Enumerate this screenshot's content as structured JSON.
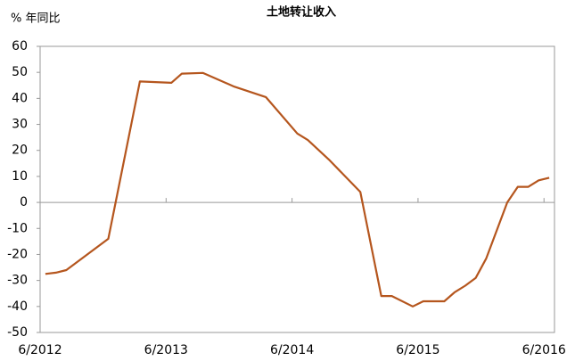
{
  "chart_data": {
    "type": "line",
    "title": "土地转让收入",
    "y_label": "% 年同比",
    "x": [
      "6/2012",
      "7/2012",
      "8/2012",
      "12/2012",
      "3/2013",
      "6/2013",
      "7/2013",
      "9/2013",
      "12/2013",
      "3/2014",
      "6/2014",
      "7/2014",
      "9/2014",
      "12/2014",
      "2/2015",
      "3/2015",
      "5/2015",
      "6/2015",
      "8/2015",
      "9/2015",
      "10/2015",
      "11/2015",
      "12/2015",
      "2/2016",
      "3/2016",
      "4/2016",
      "5/2016",
      "6/2016"
    ],
    "series": [
      {
        "name": "土地转让收入",
        "color": "#b5561e",
        "values": [
          -27.5,
          -27,
          -26,
          -14,
          46.5,
          46,
          49.5,
          49.8,
          44.5,
          40.5,
          26.5,
          24,
          16.5,
          4,
          -36,
          -36,
          -40,
          -38,
          -38,
          -34.5,
          -32,
          -29,
          -21.5,
          0,
          6,
          6,
          8.5,
          9.5
        ]
      }
    ],
    "xlim": [
      "6/2012",
      "7/2016"
    ],
    "xticks": [
      "6/2012",
      "6/2013",
      "6/2014",
      "6/2015",
      "6/2016"
    ],
    "ylim": [
      -50,
      60
    ],
    "yticks": [
      -50,
      -40,
      -30,
      -20,
      -10,
      0,
      10,
      20,
      30,
      40,
      50,
      60
    ]
  }
}
